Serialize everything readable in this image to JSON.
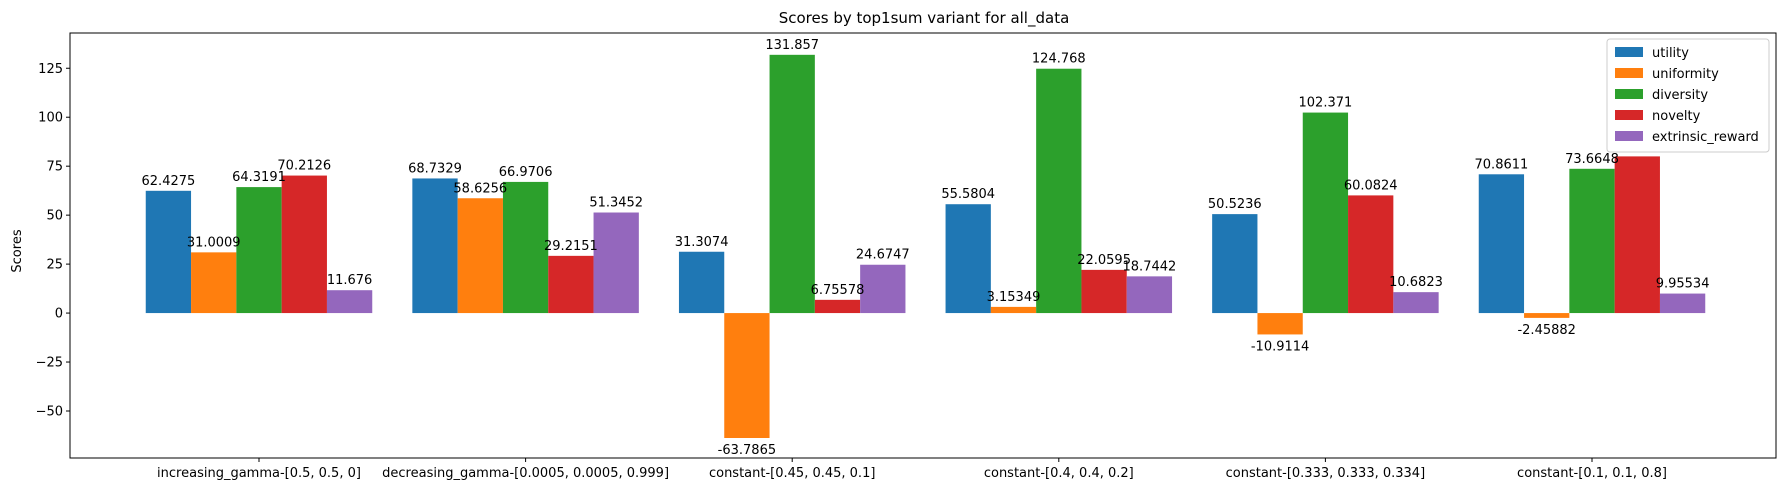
{
  "chart_data": {
    "type": "bar",
    "title": "Scores by top1sum variant for all_data",
    "xlabel": "",
    "ylabel": "Scores",
    "ylim": [
      -74,
      143
    ],
    "yticks": [
      -50,
      -25,
      0,
      25,
      50,
      75,
      100,
      125
    ],
    "grid": false,
    "legend_position": "top-right",
    "categories": [
      "increasing_gamma-[0.5, 0.5, 0]",
      "decreasing_gamma-[0.0005, 0.0005, 0.999]",
      "constant-[0.45, 0.45, 0.1]",
      "constant-[0.4, 0.4, 0.2]",
      "constant-[0.333, 0.333, 0.334]",
      "constant-[0.1, 0.1, 0.8]"
    ],
    "series": [
      {
        "name": "utility",
        "color": "#1f77b4",
        "values": [
          62.4275,
          68.7329,
          31.3074,
          55.5804,
          50.5236,
          70.8611
        ],
        "labels": [
          "62.4275",
          "68.7329",
          "31.3074",
          "55.5804",
          "50.5236",
          "70.8611"
        ]
      },
      {
        "name": "uniformity",
        "color": "#ff7f0e",
        "values": [
          31.0009,
          58.6256,
          -63.7865,
          3.15349,
          -10.9114,
          -2.45882
        ],
        "labels": [
          "31.0009",
          "58.6256",
          "-63.7865",
          "3.15349",
          "-10.9114",
          "-2.45882"
        ]
      },
      {
        "name": "diversity",
        "color": "#2ca02c",
        "values": [
          64.3191,
          66.9706,
          131.857,
          124.768,
          102.371,
          73.6648
        ],
        "labels": [
          "64.3191",
          "66.9706",
          "131.857",
          "124.768",
          "102.371",
          "73.6648"
        ]
      },
      {
        "name": "novelty",
        "color": "#d62728",
        "values": [
          70.2126,
          29.2151,
          6.75578,
          22.0595,
          60.0824,
          80.0
        ],
        "labels": [
          "70.2126",
          "29.2151",
          "6.75578",
          "22.0595",
          "60.0824",
          ""
        ]
      },
      {
        "name": "extrinsic_reward",
        "color": "#9467bd",
        "values": [
          11.676,
          51.3452,
          24.6747,
          18.7442,
          10.6823,
          9.95534
        ],
        "labels": [
          "11.676",
          "51.3452",
          "24.6747",
          "18.7442",
          "10.6823",
          "9.95534"
        ]
      }
    ]
  }
}
